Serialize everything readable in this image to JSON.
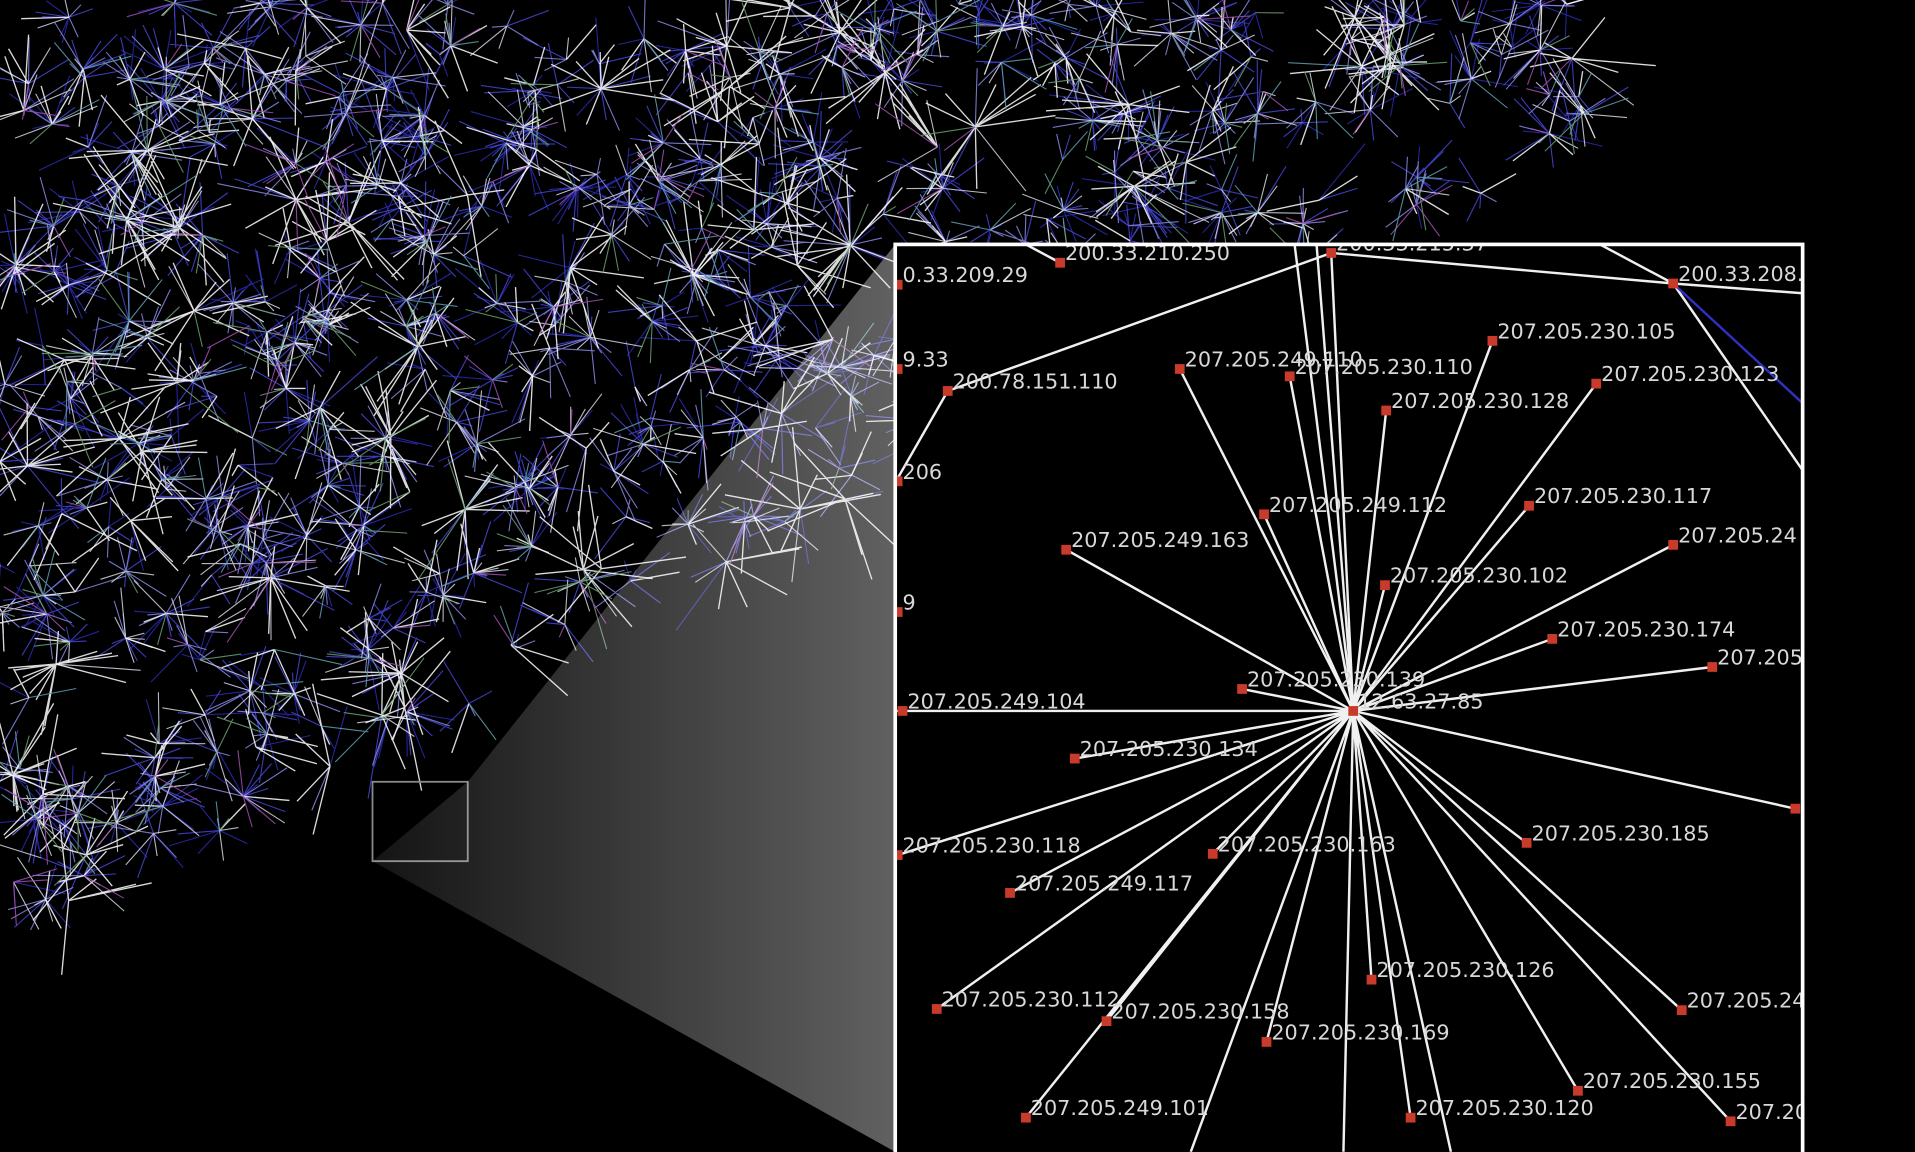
{
  "inset": {
    "nodes": [
      {
        "label": "200.33.210.250"
      },
      {
        "label": "200.33.215.37"
      },
      {
        "label": "0.33.209.29"
      },
      {
        "label": "200.33.208."
      },
      {
        "label": "9.33"
      },
      {
        "label": "200.78.151.110"
      },
      {
        "label": "207.205.249.110"
      },
      {
        "label": "207.205.230.110"
      },
      {
        "label": "207.205.230.105"
      },
      {
        "label": "207.205.230.123"
      },
      {
        "label": "207.205.230.128"
      },
      {
        "label": "206"
      },
      {
        "label": "207.205.249.112"
      },
      {
        "label": "207.205.230.117"
      },
      {
        "label": "207.205.249.163"
      },
      {
        "label": "207.205.24"
      },
      {
        "label": "207.205.230.102"
      },
      {
        "label": "207.205.230.174"
      },
      {
        "label": "207.205"
      },
      {
        "label": "9"
      },
      {
        "label": "207.205.230.139"
      },
      {
        "label": "12.63.27.85"
      },
      {
        "label": "207.205.249.104"
      },
      {
        "label": "207.205.230.134"
      },
      {
        "label": "207.205.230.118"
      },
      {
        "label": "207.205.230.163"
      },
      {
        "label": "207.205.230.185"
      },
      {
        "label": "207.205.249.117"
      },
      {
        "label": "207.205.230.126"
      },
      {
        "label": "207.205.230.112"
      },
      {
        "label": "207.205.230.158"
      },
      {
        "label": "207.205.230.169"
      },
      {
        "label": "207.205.24"
      },
      {
        "label": "207.205.230.155"
      },
      {
        "label": "207.205.249.101"
      },
      {
        "label": "207.205.230.120"
      },
      {
        "label": "207.20"
      }
    ]
  }
}
